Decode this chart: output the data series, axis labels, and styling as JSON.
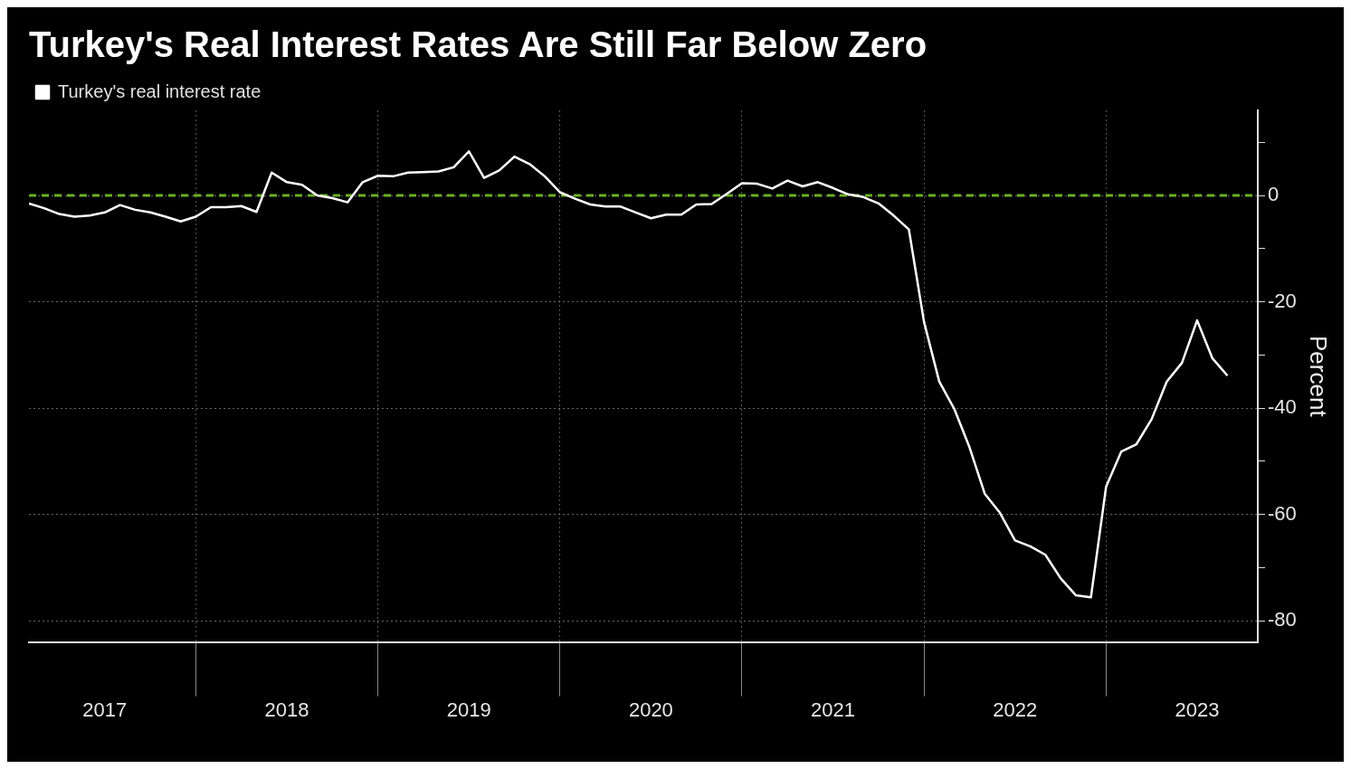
{
  "chart_data": {
    "type": "line",
    "title": "Turkey's Real Interest Rates Are Still Far Below Zero",
    "ylabel": "Percent",
    "legend": "top left",
    "grid": true,
    "marker": "none",
    "line_style": "solid",
    "x": [
      "2017-02",
      "2017-03",
      "2017-04",
      "2017-05",
      "2017-06",
      "2017-07",
      "2017-08",
      "2017-09",
      "2017-10",
      "2017-11",
      "2017-12",
      "2018-01",
      "2018-02",
      "2018-03",
      "2018-04",
      "2018-05",
      "2018-06",
      "2018-07",
      "2018-08",
      "2018-09",
      "2018-10",
      "2018-11",
      "2018-12",
      "2019-01",
      "2019-02",
      "2019-03",
      "2019-04",
      "2019-05",
      "2019-06",
      "2019-07",
      "2019-08",
      "2019-09",
      "2019-10",
      "2019-11",
      "2019-12",
      "2020-01",
      "2020-02",
      "2020-03",
      "2020-04",
      "2020-05",
      "2020-06",
      "2020-07",
      "2020-08",
      "2020-09",
      "2020-10",
      "2020-11",
      "2020-12",
      "2021-01",
      "2021-02",
      "2021-03",
      "2021-04",
      "2021-05",
      "2021-06",
      "2021-07",
      "2021-08",
      "2021-09",
      "2021-10",
      "2021-11",
      "2021-12",
      "2022-01",
      "2022-02",
      "2022-03",
      "2022-04",
      "2022-05",
      "2022-06",
      "2022-07",
      "2022-08",
      "2022-09",
      "2022-10",
      "2022-11",
      "2022-12",
      "2023-01",
      "2023-02",
      "2023-03",
      "2023-04",
      "2023-05",
      "2023-06",
      "2023-07",
      "2023-08",
      "2023-09"
    ],
    "series": [
      {
        "name": "Turkey's real interest rate",
        "color": "#ffffff",
        "values": [
          -1.5,
          -2.4,
          -3.5,
          -4.0,
          -3.8,
          -3.2,
          -1.8,
          -2.7,
          -3.2,
          -4.0,
          -4.9,
          -4.0,
          -2.2,
          -2.2,
          -2.0,
          -3.1,
          4.3,
          2.5,
          2.0,
          0,
          -0.5,
          -1.3,
          2.5,
          3.7,
          3.6,
          4.3,
          4.4,
          4.5,
          5.3,
          8.3,
          3.3,
          4.7,
          7.3,
          5.9,
          3.6,
          0.6,
          -0.6,
          -1.7,
          -2.1,
          -2.1,
          -3.2,
          -4.3,
          -3.6,
          -3.6,
          -1.7,
          -1.6,
          0.3,
          2.3,
          2.2,
          1.3,
          2.8,
          1.7,
          2.5,
          1.4,
          0.2,
          -0.3,
          -1.5,
          -3.8,
          -6.4,
          -23.8,
          -35.0,
          -40.2,
          -47.4,
          -56.1,
          -59.7,
          -64.9,
          -66.0,
          -67.6,
          -72.0,
          -75.2,
          -75.6,
          -54.8,
          -48.2,
          -46.8,
          -42.1,
          -35.0,
          -31.5,
          -23.5,
          -30.6,
          -33.9
        ]
      }
    ],
    "xlim": [
      "2017-02",
      "2023-11"
    ],
    "xticks": [
      {
        "value": "2017-07",
        "label": "2017"
      },
      {
        "value": "2018-01",
        "label": null
      },
      {
        "value": "2018-07",
        "label": "2018"
      },
      {
        "value": "2019-01",
        "label": null
      },
      {
        "value": "2019-07",
        "label": "2019"
      },
      {
        "value": "2020-01",
        "label": null
      },
      {
        "value": "2020-07",
        "label": "2020"
      },
      {
        "value": "2021-01",
        "label": null
      },
      {
        "value": "2021-07",
        "label": "2021"
      },
      {
        "value": "2022-01",
        "label": null
      },
      {
        "value": "2022-07",
        "label": "2022"
      },
      {
        "value": "2023-01",
        "label": null
      },
      {
        "value": "2023-07",
        "label": "2023"
      }
    ],
    "ylim": [
      -84,
      16
    ],
    "yticks": [
      {
        "value": 10,
        "label": null
      },
      0,
      {
        "value": -10,
        "label": null
      },
      -20,
      {
        "value": -30,
        "label": null
      },
      -40,
      {
        "value": -50,
        "label": null
      },
      -60,
      {
        "value": -70,
        "label": null
      },
      -80
    ],
    "ref_lines": [
      {
        "axis": "y",
        "value": 0,
        "color": "#6ab023",
        "line_style": "dashed"
      }
    ]
  }
}
